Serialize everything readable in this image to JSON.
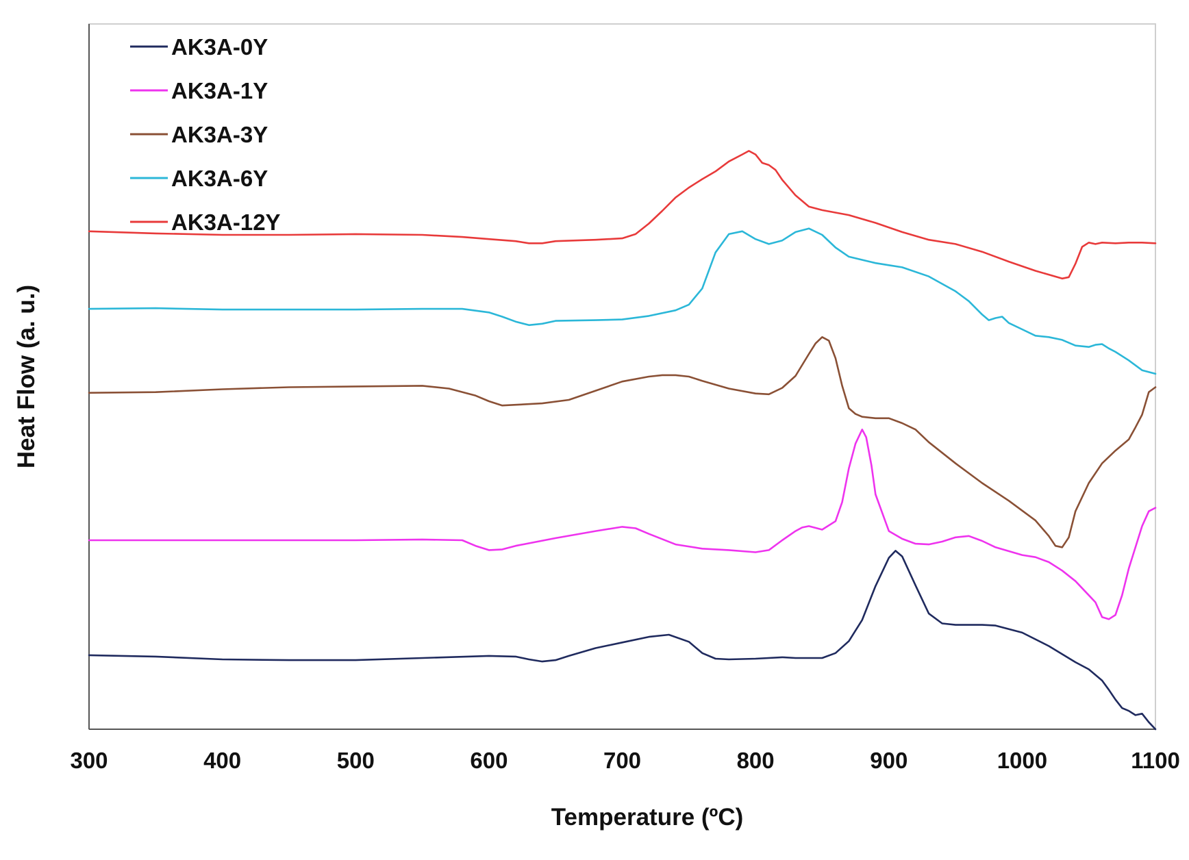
{
  "chart_data": {
    "type": "line",
    "xlabel": "Temperature (ºC)",
    "ylabel": "Heat Flow (a. u.)",
    "xlim": [
      300,
      1100
    ],
    "ylim": [
      0,
      1
    ],
    "y_ticks_shown": false,
    "grid": false,
    "legend_position": "top-left",
    "x_ticks": [
      "300",
      "400",
      "500",
      "600",
      "700",
      "800",
      "900",
      "1000",
      "1100"
    ],
    "series": [
      {
        "name": "AK3A-0Y",
        "color": "#1f2a5e",
        "x": [
          300,
          350,
          400,
          450,
          500,
          550,
          600,
          620,
          630,
          640,
          650,
          660,
          680,
          700,
          720,
          735,
          750,
          760,
          770,
          780,
          800,
          820,
          830,
          850,
          860,
          870,
          880,
          890,
          900,
          905,
          910,
          920,
          930,
          940,
          950,
          970,
          980,
          1000,
          1020,
          1040,
          1050,
          1060,
          1065,
          1070,
          1075,
          1080,
          1085,
          1090,
          1095,
          1100
        ],
        "y": [
          0.105,
          0.103,
          0.099,
          0.098,
          0.098,
          0.101,
          0.104,
          0.103,
          0.099,
          0.096,
          0.098,
          0.104,
          0.115,
          0.123,
          0.131,
          0.134,
          0.124,
          0.108,
          0.1,
          0.099,
          0.1,
          0.102,
          0.101,
          0.101,
          0.108,
          0.125,
          0.155,
          0.203,
          0.243,
          0.253,
          0.245,
          0.204,
          0.164,
          0.15,
          0.148,
          0.148,
          0.147,
          0.137,
          0.118,
          0.095,
          0.085,
          0.069,
          0.056,
          0.042,
          0.03,
          0.026,
          0.02,
          0.022,
          0.01,
          0.0
        ]
      },
      {
        "name": "AK3A-1Y",
        "color": "#ee33ee",
        "x": [
          300,
          350,
          400,
          450,
          500,
          550,
          580,
          590,
          600,
          610,
          620,
          650,
          680,
          700,
          710,
          720,
          740,
          760,
          780,
          800,
          810,
          820,
          830,
          835,
          840,
          850,
          860,
          865,
          870,
          875,
          880,
          883,
          887,
          890,
          900,
          910,
          920,
          930,
          940,
          950,
          960,
          970,
          980,
          1000,
          1010,
          1020,
          1030,
          1040,
          1050,
          1055,
          1060,
          1065,
          1070,
          1075,
          1080,
          1090,
          1095,
          1100
        ],
        "y": [
          0.268,
          0.268,
          0.268,
          0.268,
          0.268,
          0.269,
          0.268,
          0.26,
          0.254,
          0.255,
          0.26,
          0.271,
          0.281,
          0.287,
          0.285,
          0.277,
          0.262,
          0.256,
          0.254,
          0.251,
          0.254,
          0.268,
          0.281,
          0.286,
          0.288,
          0.283,
          0.295,
          0.322,
          0.37,
          0.405,
          0.425,
          0.414,
          0.374,
          0.333,
          0.281,
          0.27,
          0.263,
          0.262,
          0.266,
          0.272,
          0.274,
          0.267,
          0.258,
          0.247,
          0.244,
          0.237,
          0.225,
          0.21,
          0.19,
          0.18,
          0.159,
          0.156,
          0.162,
          0.19,
          0.228,
          0.288,
          0.309,
          0.314
        ]
      },
      {
        "name": "AK3A-3Y",
        "color": "#8a5035",
        "x": [
          300,
          350,
          400,
          450,
          500,
          550,
          570,
          590,
          600,
          610,
          620,
          640,
          660,
          680,
          700,
          720,
          730,
          740,
          750,
          760,
          780,
          800,
          810,
          820,
          830,
          840,
          845,
          850,
          855,
          860,
          865,
          870,
          875,
          880,
          890,
          900,
          910,
          920,
          930,
          950,
          970,
          990,
          1010,
          1020,
          1025,
          1030,
          1035,
          1040,
          1050,
          1060,
          1070,
          1080,
          1085,
          1090,
          1095,
          1100
        ],
        "y": [
          0.477,
          0.478,
          0.482,
          0.485,
          0.486,
          0.487,
          0.483,
          0.473,
          0.465,
          0.459,
          0.46,
          0.462,
          0.467,
          0.48,
          0.493,
          0.5,
          0.502,
          0.502,
          0.5,
          0.494,
          0.483,
          0.476,
          0.475,
          0.484,
          0.501,
          0.532,
          0.547,
          0.556,
          0.551,
          0.526,
          0.487,
          0.455,
          0.447,
          0.443,
          0.441,
          0.441,
          0.434,
          0.425,
          0.407,
          0.377,
          0.349,
          0.324,
          0.296,
          0.274,
          0.26,
          0.258,
          0.272,
          0.309,
          0.349,
          0.377,
          0.395,
          0.411,
          0.428,
          0.446,
          0.478,
          0.485
        ]
      },
      {
        "name": "AK3A-6Y",
        "color": "#2bb7d8",
        "x": [
          300,
          350,
          400,
          450,
          500,
          550,
          580,
          600,
          610,
          620,
          630,
          640,
          650,
          680,
          700,
          720,
          740,
          750,
          760,
          770,
          780,
          790,
          800,
          810,
          820,
          830,
          840,
          850,
          860,
          870,
          890,
          900,
          910,
          930,
          950,
          960,
          970,
          975,
          980,
          985,
          990,
          1000,
          1010,
          1020,
          1030,
          1040,
          1050,
          1055,
          1060,
          1065,
          1070,
          1080,
          1090,
          1100
        ],
        "y": [
          0.596,
          0.597,
          0.595,
          0.595,
          0.595,
          0.596,
          0.596,
          0.591,
          0.585,
          0.578,
          0.573,
          0.575,
          0.579,
          0.58,
          0.581,
          0.586,
          0.594,
          0.602,
          0.625,
          0.676,
          0.702,
          0.706,
          0.695,
          0.688,
          0.693,
          0.705,
          0.71,
          0.701,
          0.683,
          0.67,
          0.661,
          0.658,
          0.655,
          0.642,
          0.621,
          0.607,
          0.588,
          0.58,
          0.583,
          0.585,
          0.576,
          0.567,
          0.558,
          0.556,
          0.552,
          0.544,
          0.542,
          0.545,
          0.546,
          0.54,
          0.535,
          0.523,
          0.509,
          0.504
        ]
      },
      {
        "name": "AK3A-12Y",
        "color": "#e83a3a",
        "x": [
          300,
          350,
          400,
          450,
          500,
          550,
          580,
          600,
          620,
          630,
          640,
          650,
          680,
          700,
          710,
          720,
          730,
          740,
          750,
          760,
          770,
          780,
          790,
          795,
          800,
          805,
          810,
          815,
          820,
          830,
          840,
          850,
          870,
          890,
          910,
          930,
          950,
          970,
          990,
          1010,
          1030,
          1035,
          1040,
          1045,
          1050,
          1055,
          1060,
          1070,
          1080,
          1090,
          1100
        ],
        "y": [
          0.706,
          0.703,
          0.701,
          0.701,
          0.702,
          0.701,
          0.698,
          0.695,
          0.692,
          0.689,
          0.689,
          0.692,
          0.694,
          0.696,
          0.702,
          0.717,
          0.735,
          0.754,
          0.768,
          0.78,
          0.791,
          0.805,
          0.815,
          0.82,
          0.815,
          0.803,
          0.8,
          0.793,
          0.779,
          0.757,
          0.741,
          0.736,
          0.729,
          0.718,
          0.705,
          0.694,
          0.688,
          0.677,
          0.663,
          0.65,
          0.639,
          0.641,
          0.66,
          0.684,
          0.69,
          0.688,
          0.69,
          0.689,
          0.69,
          0.69,
          0.689
        ]
      }
    ]
  }
}
